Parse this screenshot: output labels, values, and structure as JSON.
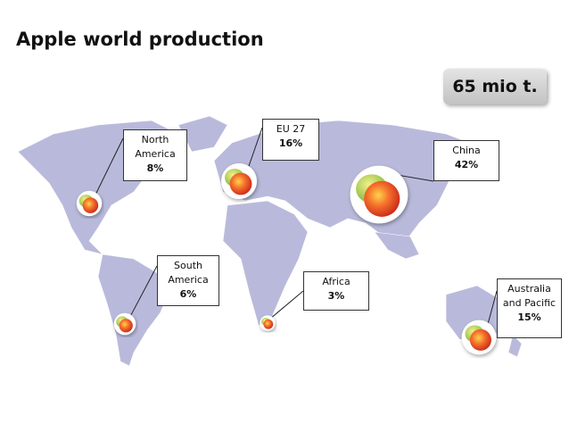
{
  "title": "Apple world production",
  "total": "65 mio t.",
  "regions": {
    "names": [
      "North America",
      "EU 27",
      "China",
      "South America",
      "Africa",
      "Australia and Pacific"
    ],
    "values": [
      8,
      16,
      42,
      6,
      3,
      15
    ],
    "value_labels": [
      "8%",
      "16%",
      "42%",
      "6%",
      "3%",
      "15%"
    ]
  }
}
